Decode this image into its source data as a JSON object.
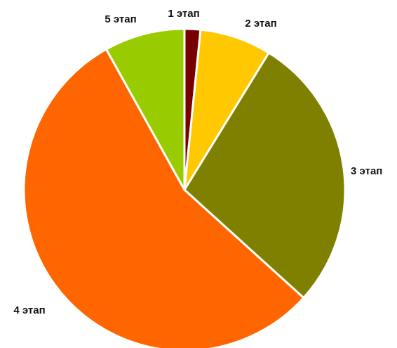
{
  "chart_data": {
    "type": "pie",
    "title": "",
    "start_angle_deg": 0,
    "direction": "clockwise",
    "legend": "none",
    "slices": [
      {
        "label": "1 этап",
        "value": 1.6,
        "color": "#7A0000"
      },
      {
        "label": "2 этап",
        "value": 7.2,
        "color": "#FFC800"
      },
      {
        "label": "3 этап",
        "value": 27.9,
        "color": "#808000"
      },
      {
        "label": "4 этап",
        "value": 55.2,
        "color": "#FF6600"
      },
      {
        "label": "5 этап",
        "value": 8.1,
        "color": "#99CC00"
      }
    ]
  }
}
